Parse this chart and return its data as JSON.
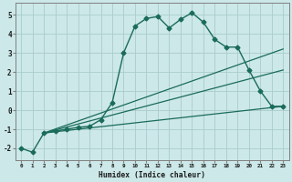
{
  "xlabel": "Humidex (Indice chaleur)",
  "ylabel": "",
  "bg_color": "#cce8e8",
  "grid_color": "#aacccc",
  "line_color": "#1a6b5a",
  "xlim": [
    -0.5,
    23.5
  ],
  "ylim": [
    -2.6,
    5.6
  ],
  "yticks": [
    -2,
    -1,
    0,
    1,
    2,
    3,
    4,
    5
  ],
  "series": [
    {
      "x": [
        0,
        1,
        2,
        3,
        4,
        5,
        6,
        7,
        8,
        9,
        10,
        11,
        12,
        13,
        14,
        15,
        16,
        17,
        18,
        19,
        20,
        21,
        22,
        23
      ],
      "y": [
        -2.0,
        -2.2,
        -1.2,
        -1.1,
        -1.0,
        -0.9,
        -0.85,
        -0.5,
        0.4,
        3.0,
        4.4,
        4.8,
        4.9,
        4.3,
        4.75,
        5.1,
        4.6,
        3.7,
        3.3,
        3.3,
        2.1,
        1.0,
        0.2,
        0.2
      ],
      "marker": "D",
      "markersize": 2.5,
      "linewidth": 1.0
    },
    {
      "x": [
        2,
        23
      ],
      "y": [
        -1.2,
        3.2
      ],
      "marker": null,
      "linewidth": 0.9
    },
    {
      "x": [
        2,
        23
      ],
      "y": [
        -1.2,
        2.1
      ],
      "marker": null,
      "linewidth": 0.9
    },
    {
      "x": [
        2,
        23
      ],
      "y": [
        -1.2,
        0.2
      ],
      "marker": null,
      "linewidth": 0.9
    }
  ]
}
